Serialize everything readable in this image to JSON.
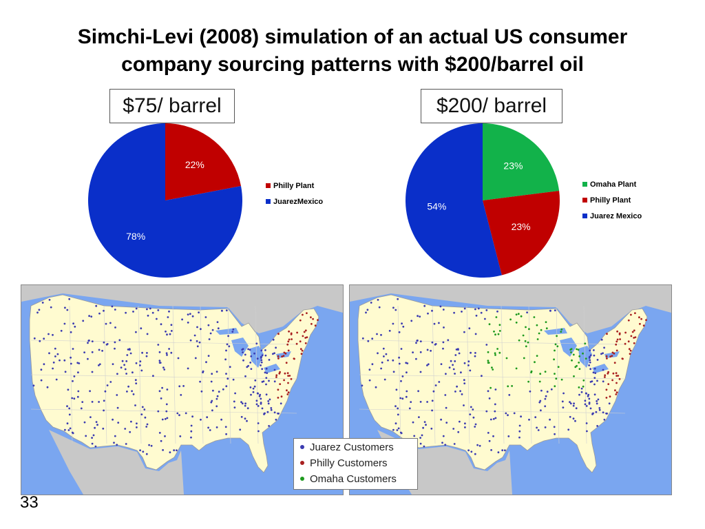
{
  "title": {
    "line1": "Simchi-Levi (2008) simulation of an actual US consumer",
    "line2": "company sourcing patterns with $200/barrel oil"
  },
  "colors": {
    "philly": "#c00000",
    "juarez": "#0a2fc9",
    "omaha": "#12b24a",
    "ocean": "#7aa6f0",
    "land_us": "#fffbd0",
    "land_other": "#c8c8c8",
    "dot_juarez": "#3b3bb0",
    "dot_philly": "#a82020",
    "dot_omaha": "#1e9a1e"
  },
  "chart_data": [
    {
      "type": "pie",
      "title": "$75/ barrel",
      "slices": [
        {
          "label": "Philly Plant",
          "value": 22,
          "display": "22%",
          "color": "#c00000"
        },
        {
          "label": "Juarez Mexico",
          "value": 78,
          "display": "78%",
          "color": "#0a2fc9"
        }
      ],
      "legend": [
        "Philly Plant",
        "JuarezMexico"
      ],
      "legend_placement": "right"
    },
    {
      "type": "pie",
      "title": "$200/ barrel",
      "slices": [
        {
          "label": "Omaha Plant",
          "value": 23,
          "display": "23%",
          "color": "#12b24a"
        },
        {
          "label": "Philly Plant",
          "value": 23,
          "display": "23%",
          "color": "#c00000"
        },
        {
          "label": "Juarez Mexico",
          "value": 54,
          "display": "54%",
          "color": "#0a2fc9"
        }
      ],
      "legend": [
        "Omaha Plant",
        "Philly Plant",
        "Juarez Mexico"
      ],
      "legend_placement": "right"
    }
  ],
  "maps": {
    "legend": [
      {
        "label": "Juarez Customers",
        "color": "#3b3bb0"
      },
      {
        "label": "Philly Customers",
        "color": "#a82020"
      },
      {
        "label": "Omaha Customers",
        "color": "#1e9a1e"
      }
    ]
  },
  "page_number": "33"
}
